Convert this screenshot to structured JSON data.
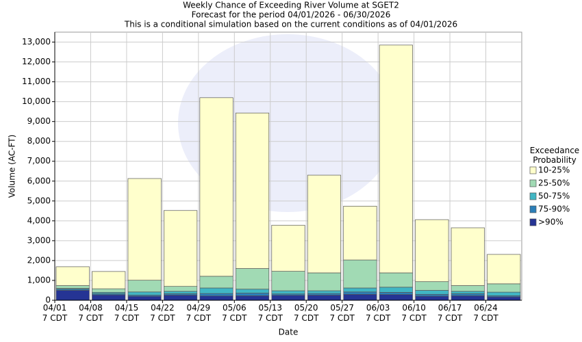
{
  "chart_data": {
    "type": "stacked_bar",
    "title": "Weekly Chance of Exceeding River Volume at SGET2",
    "subtitle": "Forecast for the period 04/01/2026 - 06/30/2026",
    "note": "This is a conditional simulation based on the current conditions as of 04/01/2026",
    "x_label": "Date",
    "y_label": "Volume (AC-FT)",
    "legend_title": "Exceedance Probability",
    "categories": [
      "04/01 7 CDT",
      "04/08 7 CDT",
      "04/15 7 CDT",
      "04/22 7 CDT",
      "04/29 7 CDT",
      "05/06 7 CDT",
      "05/13 7 CDT",
      "05/20 7 CDT",
      "05/27 7 CDT",
      "06/03 7 CDT",
      "06/10 7 CDT",
      "06/17 7 CDT",
      "06/24 7 CDT"
    ],
    "series": [
      {
        "name": ">90%",
        "color": "#253494",
        "values": [
          500,
          270,
          200,
          260,
          220,
          230,
          250,
          260,
          300,
          290,
          210,
          230,
          170
        ]
      },
      {
        "name": "75-90%",
        "color": "#2c7fb8",
        "values": [
          60,
          60,
          60,
          70,
          120,
          130,
          70,
          80,
          120,
          110,
          90,
          100,
          60
        ]
      },
      {
        "name": "50-75%",
        "color": "#41b6c4",
        "values": [
          40,
          70,
          160,
          120,
          280,
          200,
          160,
          140,
          200,
          260,
          200,
          120,
          180
        ]
      },
      {
        "name": "25-50%",
        "color": "#a1dab4",
        "values": [
          140,
          180,
          590,
          250,
          590,
          1040,
          980,
          900,
          1410,
          720,
          440,
          290,
          420
        ]
      },
      {
        "name": "10-25%",
        "color": "#ffffcc",
        "values": [
          950,
          870,
          5120,
          3820,
          8990,
          7830,
          2320,
          4920,
          2710,
          11470,
          3120,
          2910,
          1480
        ]
      }
    ],
    "ylim": [
      0,
      13500
    ],
    "yticks": [
      0,
      {
        "value": 1000,
        "label": "1,000"
      },
      {
        "value": 2000,
        "label": "2,000"
      },
      {
        "value": 3000,
        "label": "3,000"
      },
      {
        "value": 4000,
        "label": "4,000"
      },
      {
        "value": 5000,
        "label": "5,000"
      },
      {
        "value": 6000,
        "label": "6,000"
      },
      {
        "value": 7000,
        "label": "7,000"
      },
      {
        "value": 8000,
        "label": "8,000"
      },
      {
        "value": 9000,
        "label": "9,000"
      },
      {
        "value": 10000,
        "label": "10,000"
      },
      {
        "value": 11000,
        "label": "11,000"
      },
      {
        "value": 12000,
        "label": "12,000"
      },
      {
        "value": 13000,
        "label": "13,000"
      }
    ],
    "grid": true
  }
}
